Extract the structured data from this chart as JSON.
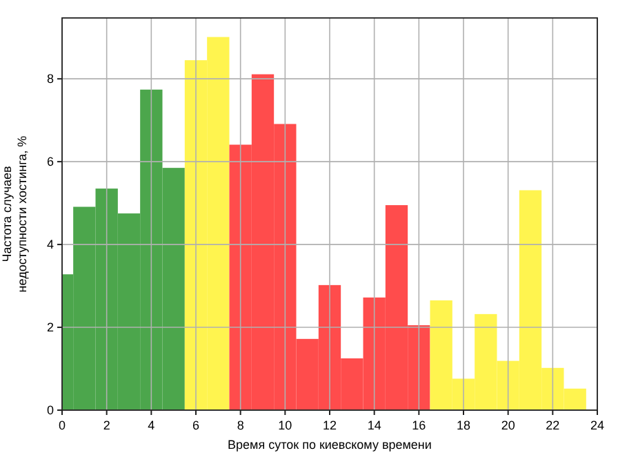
{
  "chart_data": {
    "type": "histogram",
    "xlabel": "Время суток по киевскому времени",
    "ylabel": "Частота случаев\nнедоступности хостинга, %",
    "bins": [
      0,
      0.5,
      1.5,
      2.5,
      3.5,
      4.5,
      5.5,
      6.5,
      7.5,
      8.5,
      9.5,
      10.5,
      11.5,
      12.5,
      13.5,
      14.5,
      15.5,
      16.5,
      17.5,
      18.5,
      19.5,
      20.5,
      21.5,
      22.5,
      23.5
    ],
    "values": [
      3.28,
      4.91,
      5.35,
      4.75,
      7.74,
      5.85,
      8.45,
      9.01,
      6.41,
      8.11,
      6.91,
      1.72,
      3.02,
      1.25,
      2.72,
      4.95,
      2.05,
      2.65,
      0.76,
      2.32,
      1.19,
      5.31,
      1.02,
      0.52
    ],
    "colors": [
      "#4ca64c",
      "#4ca64c",
      "#4ca64c",
      "#4ca64c",
      "#4ca64c",
      "#4ca64c",
      "#fff44f",
      "#fff44f",
      "#ff4c4c",
      "#ff4c4c",
      "#ff4c4c",
      "#ff4c4c",
      "#ff4c4c",
      "#ff4c4c",
      "#ff4c4c",
      "#ff4c4c",
      "#ff4c4c",
      "#fff44f",
      "#fff44f",
      "#fff44f",
      "#fff44f",
      "#fff44f",
      "#fff44f",
      "#fff44f"
    ],
    "xlim": [
      0,
      24
    ],
    "xticks": [
      0,
      2,
      4,
      6,
      8,
      10,
      12,
      14,
      16,
      18,
      20,
      22,
      24
    ],
    "ylim": [
      0,
      9.47
    ],
    "yticks": [
      0,
      2,
      4,
      6,
      8
    ],
    "grid": true
  }
}
